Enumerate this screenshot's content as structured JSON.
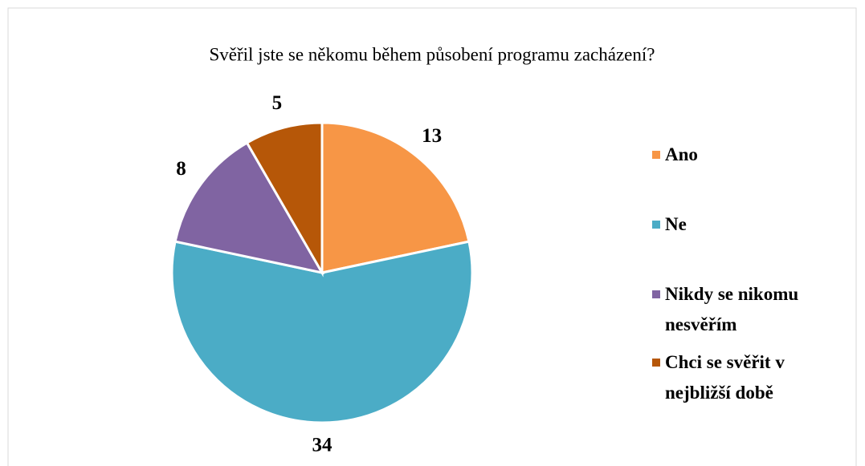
{
  "chart_data": {
    "type": "pie",
    "title": "Svěřil jste se někomu během působení programu zacházení?",
    "categories": [
      "Ano",
      "Ne",
      "Nikdy se nikomu nesvěřím",
      "Chci se svěřit v nejbližší době"
    ],
    "values": [
      13,
      34,
      8,
      5
    ],
    "colors": [
      "#f79646",
      "#4bacc6",
      "#8064a2",
      "#b65708"
    ],
    "legend": "right"
  }
}
